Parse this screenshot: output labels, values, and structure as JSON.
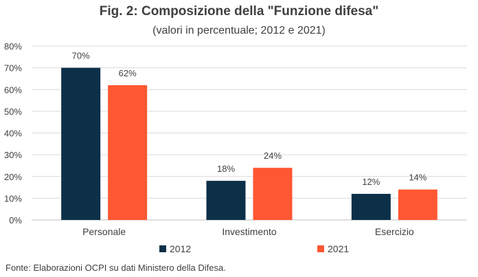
{
  "header": {
    "title": "Fig. 2: Composizione della \"Funzione difesa\"",
    "subtitle": "(valori in percentuale; 2012 e 2021)"
  },
  "footer": {
    "source": "Fonte: Elaborazioni OCPI su dati Ministero della Difesa."
  },
  "chart_data": {
    "type": "bar",
    "title": "Fig. 2: Composizione della \"Funzione difesa\"",
    "subtitle": "(valori in percentuale; 2012 e 2021)",
    "categories": [
      "Personale",
      "Investimento",
      "Esercizio"
    ],
    "series": [
      {
        "name": "2012",
        "values": [
          70,
          18,
          12
        ],
        "labels": [
          "70%",
          "18%",
          "12%"
        ],
        "color": "#0d3049"
      },
      {
        "name": "2021",
        "values": [
          62,
          24,
          14
        ],
        "labels": [
          "62%",
          "24%",
          "14%"
        ],
        "color": "#ff5733"
      }
    ],
    "ylim": [
      0,
      80
    ],
    "yticks": [
      0,
      10,
      20,
      30,
      40,
      50,
      60,
      70,
      80
    ],
    "ytick_labels": [
      "0%",
      "10%",
      "20%",
      "30%",
      "40%",
      "50%",
      "60%",
      "70%",
      "80%"
    ],
    "xlabel": "",
    "ylabel": "",
    "grid": true,
    "legend_position": "bottom"
  }
}
